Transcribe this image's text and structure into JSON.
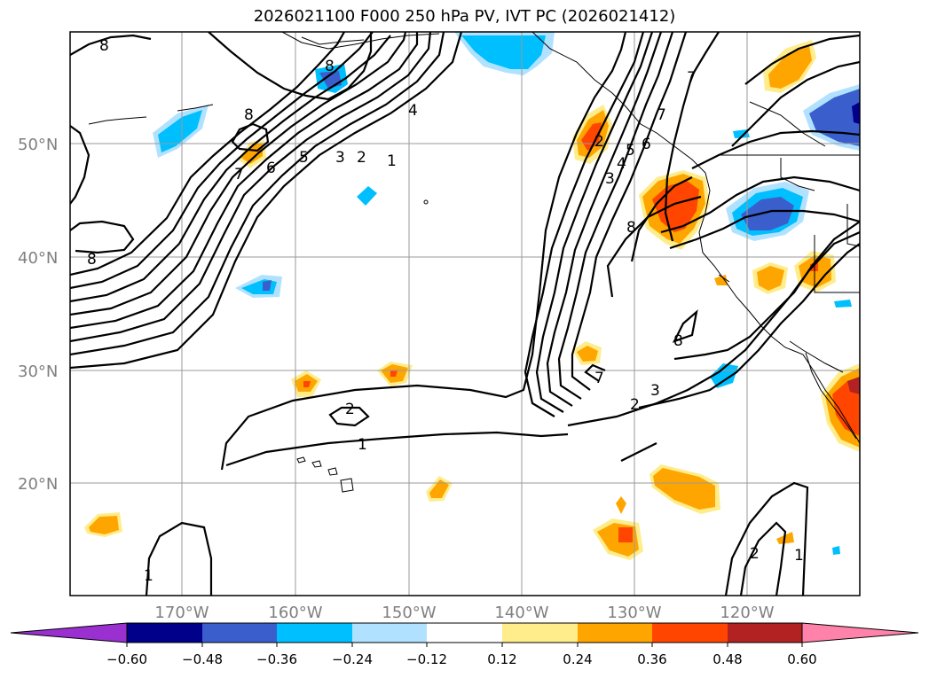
{
  "title": "2026021100 F000 250 hPa PV, IVT PC (2026021412)",
  "map": {
    "lat_ticks": [
      "50°N",
      "40°N",
      "30°N",
      "20°N"
    ],
    "lon_ticks": [
      "170°W",
      "160°W",
      "150°W",
      "140°W",
      "130°W",
      "120°W"
    ],
    "contour_labels": [
      "8",
      "8",
      "8",
      "8",
      "7",
      "6",
      "5",
      "3",
      "2",
      "1",
      "4",
      "2",
      "1",
      "1",
      "7",
      "6",
      "5",
      "4",
      "3",
      "2",
      "8",
      "8",
      "7",
      "3",
      "2",
      "2",
      "1",
      "7"
    ]
  },
  "colorbar": {
    "ticks": [
      "−0.60",
      "−0.48",
      "−0.36",
      "−0.24",
      "−0.12",
      "0.12",
      "0.24",
      "0.36",
      "0.48",
      "0.60"
    ],
    "colors": [
      "#9b30d0",
      "#00008b",
      "#3a5fcd",
      "#00bfff",
      "#b0e2ff",
      "#ffffff",
      "#ffec8b",
      "#ffa500",
      "#ff4500",
      "#b22222",
      "#ff82ab"
    ]
  }
}
